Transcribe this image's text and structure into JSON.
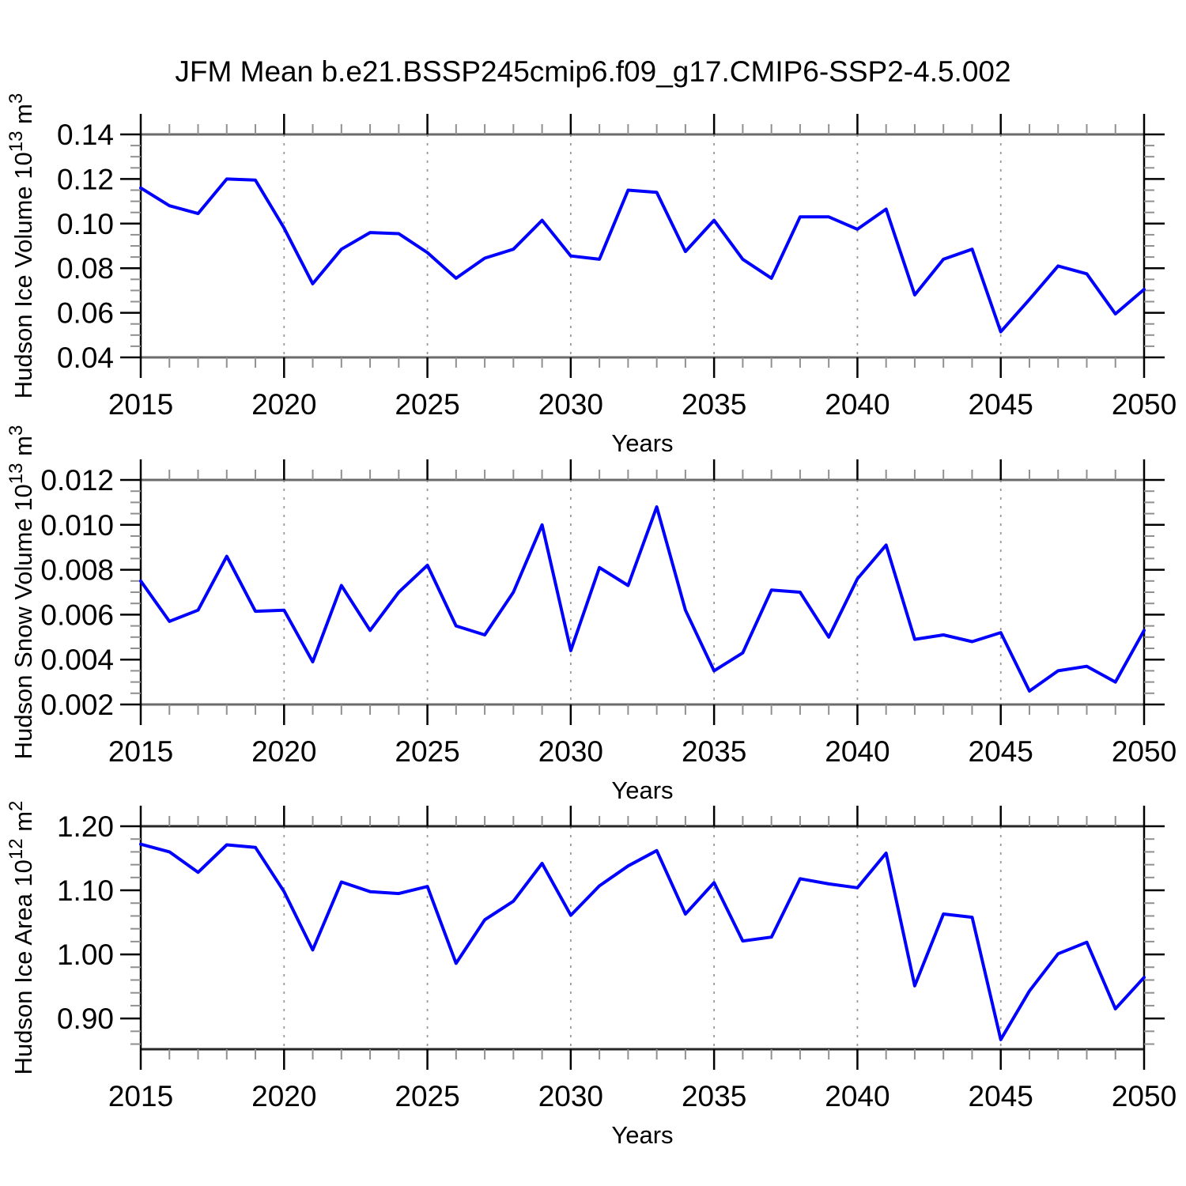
{
  "figure": {
    "title": "JFM Mean b.e21.BSSP245cmip6.f09_g17.CMIP6-SSP2-4.5.002",
    "background_color": "#ffffff",
    "line_color": "#0000ff"
  },
  "style": {
    "grid_color": "#999999",
    "minor_tick_color": "#909090",
    "major_tick_color": "#000000",
    "panel_border_colors": [
      "#6b6b6b",
      "#6b6b6b",
      "#262626"
    ]
  },
  "x_axis": {
    "label": "Years",
    "years": [
      2015,
      2016,
      2017,
      2018,
      2019,
      2020,
      2021,
      2022,
      2023,
      2024,
      2025,
      2026,
      2027,
      2028,
      2029,
      2030,
      2031,
      2032,
      2033,
      2034,
      2035,
      2036,
      2037,
      2038,
      2039,
      2040,
      2041,
      2042,
      2043,
      2044,
      2045,
      2046,
      2047,
      2048,
      2049,
      2050
    ]
  },
  "chart_data": [
    {
      "type": "line",
      "id": "hudson-ice-volume",
      "title": "JFM Mean b.e21.BSSP245cmip6.f09_g17.CMIP6-SSP2-4.5.002",
      "xlabel": "Years",
      "ylabel": "Hudson Ice Volume 10^13 m^3",
      "ylabel_rich": [
        {
          "t": "Hudson Ice Volume 10"
        },
        {
          "t": "13",
          "sup": true
        },
        {
          "t": " m"
        },
        {
          "t": "3",
          "sup": true
        }
      ],
      "xlim": [
        2015,
        2050
      ],
      "ylim": [
        0.04,
        0.14
      ],
      "xticks": [
        2015,
        2020,
        2025,
        2030,
        2035,
        2040,
        2045,
        2050
      ],
      "xtick_labels": [
        "2015",
        "2020",
        "2025",
        "2030",
        "2035",
        "2040",
        "2045",
        "2050"
      ],
      "yticks": [
        0.14,
        0.12,
        0.1,
        0.08,
        0.06,
        0.04
      ],
      "ytick_labels": [
        "0.14",
        "0.12",
        "0.10",
        "0.08",
        "0.06",
        "0.04"
      ],
      "minor_y_step": 0.005,
      "grid_x": [
        2020,
        2025,
        2030,
        2035,
        2040,
        2045
      ],
      "grid": "vertical-dashed",
      "legend": "none",
      "x": [
        2015,
        2016,
        2017,
        2018,
        2019,
        2020,
        2021,
        2022,
        2023,
        2024,
        2025,
        2026,
        2027,
        2028,
        2029,
        2030,
        2031,
        2032,
        2033,
        2034,
        2035,
        2036,
        2037,
        2038,
        2039,
        2040,
        2041,
        2042,
        2043,
        2044,
        2045,
        2046,
        2047,
        2048,
        2049,
        2050
      ],
      "series": [
        {
          "name": "Hudson Ice Volume",
          "color": "#0000ff",
          "values": [
            0.116,
            0.108,
            0.1045,
            0.12,
            0.1195,
            0.098,
            0.073,
            0.0885,
            0.096,
            0.0955,
            0.087,
            0.0755,
            0.0845,
            0.0885,
            0.1015,
            0.0855,
            0.084,
            0.115,
            0.114,
            0.0875,
            0.1015,
            0.084,
            0.0755,
            0.103,
            0.103,
            0.0975,
            0.1065,
            0.068,
            0.084,
            0.0885,
            0.0515,
            0.066,
            0.081,
            0.0775,
            0.0595,
            0.0705
          ]
        }
      ]
    },
    {
      "type": "line",
      "id": "hudson-snow-volume",
      "title": "",
      "xlabel": "Years",
      "ylabel": "Hudson Snow Volume 10^13 m^3",
      "ylabel_rich": [
        {
          "t": "Hudson Snow Volume 10"
        },
        {
          "t": "13",
          "sup": true
        },
        {
          "t": " m"
        },
        {
          "t": "3",
          "sup": true
        }
      ],
      "xlim": [
        2015,
        2050
      ],
      "ylim": [
        0.002,
        0.012
      ],
      "xticks": [
        2015,
        2020,
        2025,
        2030,
        2035,
        2040,
        2045,
        2050
      ],
      "xtick_labels": [
        "2015",
        "2020",
        "2025",
        "2030",
        "2035",
        "2040",
        "2045",
        "2050"
      ],
      "yticks": [
        0.012,
        0.01,
        0.008,
        0.006,
        0.004,
        0.002
      ],
      "ytick_labels": [
        "0.012",
        "0.010",
        "0.008",
        "0.006",
        "0.004",
        "0.002"
      ],
      "minor_y_step": 0.0005,
      "grid_x": [
        2020,
        2025,
        2030,
        2035,
        2040,
        2045
      ],
      "grid": "vertical-dashed",
      "legend": "none",
      "x": [
        2015,
        2016,
        2017,
        2018,
        2019,
        2020,
        2021,
        2022,
        2023,
        2024,
        2025,
        2026,
        2027,
        2028,
        2029,
        2030,
        2031,
        2032,
        2033,
        2034,
        2035,
        2036,
        2037,
        2038,
        2039,
        2040,
        2041,
        2042,
        2043,
        2044,
        2045,
        2046,
        2047,
        2048,
        2049,
        2050
      ],
      "series": [
        {
          "name": "Hudson Snow Volume",
          "color": "#0000ff",
          "values": [
            0.0075,
            0.0057,
            0.0062,
            0.0086,
            0.00615,
            0.0062,
            0.0039,
            0.0073,
            0.0053,
            0.007,
            0.0082,
            0.0055,
            0.0051,
            0.007,
            0.01,
            0.0044,
            0.0081,
            0.0073,
            0.0108,
            0.0062,
            0.0035,
            0.0043,
            0.0071,
            0.007,
            0.005,
            0.0076,
            0.0091,
            0.0049,
            0.0051,
            0.0048,
            0.0052,
            0.0026,
            0.0035,
            0.0037,
            0.003,
            0.0053
          ]
        }
      ]
    },
    {
      "type": "line",
      "id": "hudson-ice-area",
      "title": "",
      "xlabel": "Years",
      "ylabel": "Hudson Ice Area 10^12 m^2",
      "ylabel_rich": [
        {
          "t": "Hudson Ice Area 10"
        },
        {
          "t": "12",
          "sup": true
        },
        {
          "t": " m"
        },
        {
          "t": "2",
          "sup": true
        }
      ],
      "xlim": [
        2015,
        2050
      ],
      "ylim": [
        0.852,
        1.2
      ],
      "xticks": [
        2015,
        2020,
        2025,
        2030,
        2035,
        2040,
        2045,
        2050
      ],
      "xtick_labels": [
        "2015",
        "2020",
        "2025",
        "2030",
        "2035",
        "2040",
        "2045",
        "2050"
      ],
      "yticks": [
        1.2,
        1.1,
        1.0,
        0.9
      ],
      "ytick_labels": [
        "1.20",
        "1.10",
        "1.00",
        "0.90"
      ],
      "minor_y_step": 0.02,
      "grid_x": [
        2020,
        2025,
        2030,
        2035,
        2040,
        2045
      ],
      "grid": "vertical-dashed",
      "legend": "none",
      "x": [
        2015,
        2016,
        2017,
        2018,
        2019,
        2020,
        2021,
        2022,
        2023,
        2024,
        2025,
        2026,
        2027,
        2028,
        2029,
        2030,
        2031,
        2032,
        2033,
        2034,
        2035,
        2036,
        2037,
        2038,
        2039,
        2040,
        2041,
        2042,
        2043,
        2044,
        2045,
        2046,
        2047,
        2048,
        2049,
        2050
      ],
      "series": [
        {
          "name": "Hudson Ice Area",
          "color": "#0000ff",
          "values": [
            1.172,
            1.16,
            1.128,
            1.171,
            1.167,
            1.098,
            1.007,
            1.113,
            1.098,
            1.095,
            1.106,
            0.986,
            1.054,
            1.083,
            1.142,
            1.061,
            1.107,
            1.138,
            1.162,
            1.063,
            1.112,
            1.021,
            1.027,
            1.118,
            1.11,
            1.104,
            1.158,
            0.951,
            1.063,
            1.058,
            0.867,
            0.943,
            1.001,
            1.019,
            0.915,
            0.964
          ]
        }
      ]
    }
  ]
}
